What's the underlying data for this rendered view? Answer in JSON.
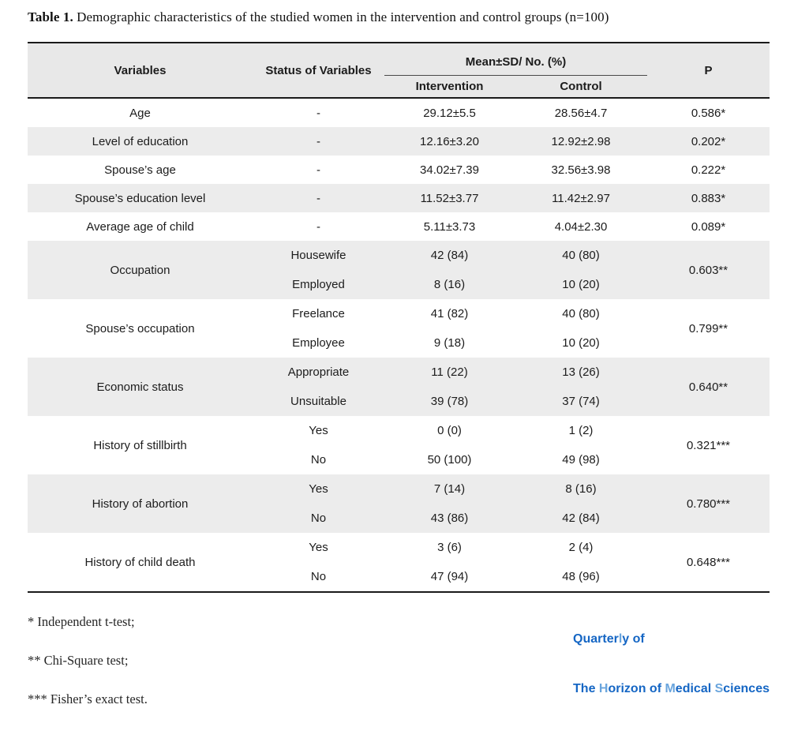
{
  "title": {
    "label": "Table 1.",
    "text": " Demographic characteristics of the studied women in the intervention and control groups (n=100)"
  },
  "table": {
    "headers": {
      "variables": "Variables",
      "status": "Status of Variables",
      "group": "Mean±SD/ No. (%)",
      "intervention": "Intervention",
      "control": "Control",
      "p": "P"
    },
    "rows": [
      {
        "variable": "Age",
        "p": "0.586*",
        "entries": [
          {
            "status": "-",
            "intervention": "29.12±5.5",
            "control": "28.56±4.7"
          }
        ]
      },
      {
        "variable": "Level of education",
        "p": "0.202*",
        "entries": [
          {
            "status": "-",
            "intervention": "12.16±3.20",
            "control": "12.92±2.98"
          }
        ]
      },
      {
        "variable": "Spouse’s age",
        "p": "0.222*",
        "entries": [
          {
            "status": "-",
            "intervention": "34.02±7.39",
            "control": "32.56±3.98"
          }
        ]
      },
      {
        "variable": "Spouse’s education level",
        "p": "0.883*",
        "entries": [
          {
            "status": "-",
            "intervention": "11.52±3.77",
            "control": "11.42±2.97"
          }
        ]
      },
      {
        "variable": "Average age of child",
        "p": "0.089*",
        "entries": [
          {
            "status": "-",
            "intervention": "5.11±3.73",
            "control": "4.04±2.30"
          }
        ]
      },
      {
        "variable": "Occupation",
        "p": "0.603**",
        "entries": [
          {
            "status": "Housewife",
            "intervention": "42 (84)",
            "control": "40 (80)"
          },
          {
            "status": "Employed",
            "intervention": "8 (16)",
            "control": "10 (20)"
          }
        ]
      },
      {
        "variable": "Spouse’s occupation",
        "p": "0.799**",
        "entries": [
          {
            "status": "Freelance",
            "intervention": "41 (82)",
            "control": "40 (80)"
          },
          {
            "status": "Employee",
            "intervention": "9 (18)",
            "control": "10 (20)"
          }
        ]
      },
      {
        "variable": "Economic status",
        "p": "0.640**",
        "entries": [
          {
            "status": "Appropriate",
            "intervention": "11 (22)",
            "control": "13 (26)"
          },
          {
            "status": "Unsuitable",
            "intervention": "39 (78)",
            "control": "37 (74)"
          }
        ]
      },
      {
        "variable": "History of stillbirth",
        "p": "0.321***",
        "entries": [
          {
            "status": "Yes",
            "intervention": "0 (0)",
            "control": "1 (2)"
          },
          {
            "status": "No",
            "intervention": "50 (100)",
            "control": "49 (98)"
          }
        ]
      },
      {
        "variable": "History of abortion",
        "p": "0.780***",
        "entries": [
          {
            "status": "Yes",
            "intervention": "7 (14)",
            "control": "8 (16)"
          },
          {
            "status": "No",
            "intervention": "43 (86)",
            "control": "42 (84)"
          }
        ]
      },
      {
        "variable": "History of child death",
        "p": "0.648***",
        "entries": [
          {
            "status": "Yes",
            "intervention": "3 (6)",
            "control": "2 (4)"
          },
          {
            "status": "No",
            "intervention": "47 (94)",
            "control": "48 (96)"
          }
        ]
      }
    ]
  },
  "footnotes": [
    "* Independent t-test;",
    "** Chi-Square test;",
    "*** Fisher’s exact test."
  ],
  "logo": {
    "line1": [
      {
        "t": "Quarter"
      },
      {
        "t": "l"
      },
      {
        "t": "y of"
      }
    ],
    "line2": [
      {
        "t": "The "
      },
      {
        "t": "H"
      },
      {
        "t": "orizon of "
      },
      {
        "t": "M"
      },
      {
        "t": "edical "
      },
      {
        "t": "S"
      },
      {
        "t": "ciences"
      }
    ]
  },
  "colors": {
    "logo_dark": "#1566c4",
    "logo_light": "#6aa5dd",
    "header_bg": "#e8e8e8",
    "row_alt_bg": "#ececec",
    "border": "#1a1a1a"
  }
}
